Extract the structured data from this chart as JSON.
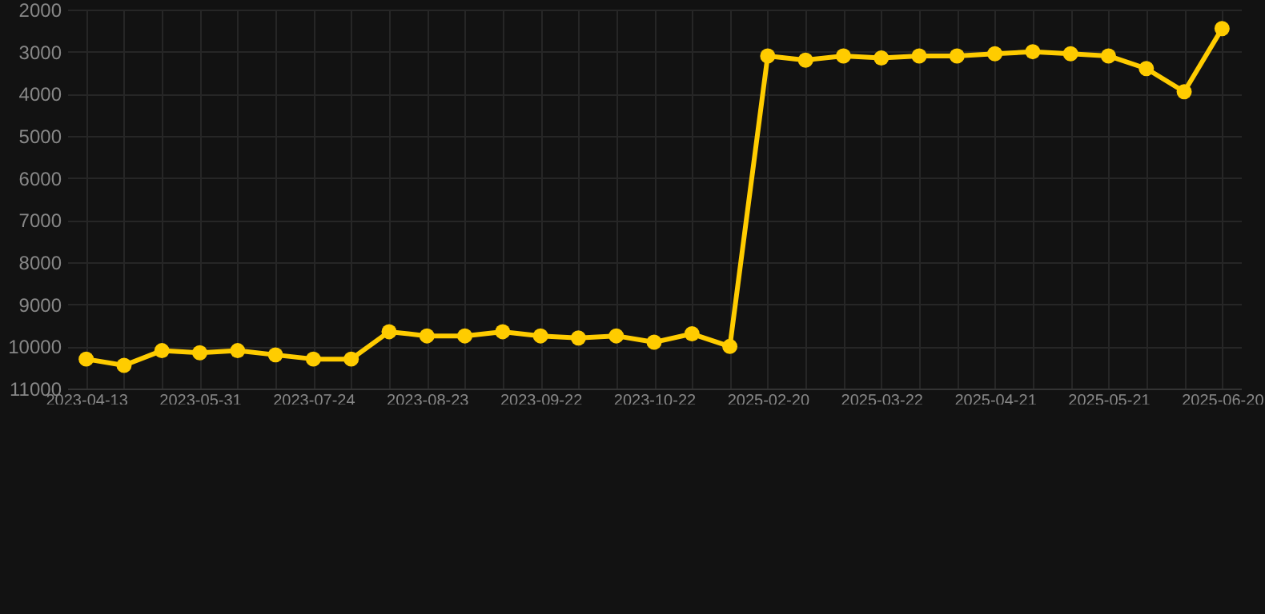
{
  "chart_data": {
    "type": "line",
    "categories": [
      "2023-04-13",
      null,
      null,
      "2023-05-31",
      null,
      null,
      "2023-07-24",
      null,
      null,
      "2023-08-23",
      null,
      null,
      "2023-09-22",
      null,
      null,
      "2023-10-22",
      null,
      null,
      "2025-02-20",
      null,
      null,
      "2025-03-22",
      null,
      null,
      "2025-04-21",
      null,
      null,
      "2025-05-21",
      null,
      null,
      "2025-06-20"
    ],
    "series": [
      {
        "color": "#ffcc00",
        "values": [
          10300,
          10450,
          10100,
          10150,
          10100,
          10200,
          10300,
          10300,
          9650,
          9750,
          9750,
          9650,
          9750,
          9800,
          9750,
          9900,
          9700,
          10000,
          3100,
          3200,
          3100,
          3150,
          3100,
          3100,
          3050,
          3000,
          3050,
          3100,
          3400,
          3950,
          2450
        ]
      }
    ],
    "ylim": [
      11000,
      2000
    ],
    "yticks": [
      2000,
      3000,
      4000,
      5000,
      6000,
      7000,
      8000,
      9000,
      10000,
      11000
    ],
    "grid": true,
    "marker": "circle",
    "line_style": "solid"
  }
}
